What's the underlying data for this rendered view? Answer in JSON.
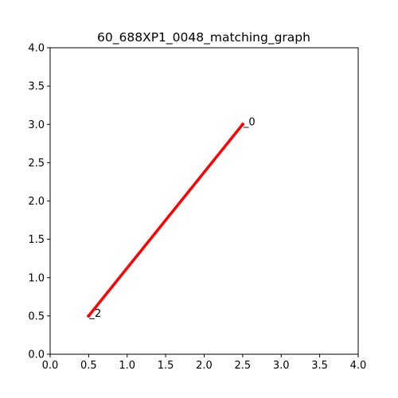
{
  "chart_data": {
    "type": "line",
    "title": "60_688XP1_0048_matching_graph",
    "xlabel": "",
    "ylabel": "",
    "xlim": [
      0.0,
      4.0
    ],
    "ylim": [
      0.0,
      4.0
    ],
    "grid": false,
    "x_ticks": [
      "0.0",
      "0.5",
      "1.0",
      "1.5",
      "2.0",
      "2.5",
      "3.0",
      "3.5",
      "4.0"
    ],
    "y_ticks": [
      "0.0",
      "0.5",
      "1.0",
      "1.5",
      "2.0",
      "2.5",
      "3.0",
      "3.5",
      "4.0"
    ],
    "series": [
      {
        "color": "#ff0000",
        "points": [
          {
            "x": 0.5,
            "y": 0.5,
            "label": "_2"
          },
          {
            "x": 2.5,
            "y": 3.0,
            "label": "_0"
          }
        ]
      }
    ]
  }
}
